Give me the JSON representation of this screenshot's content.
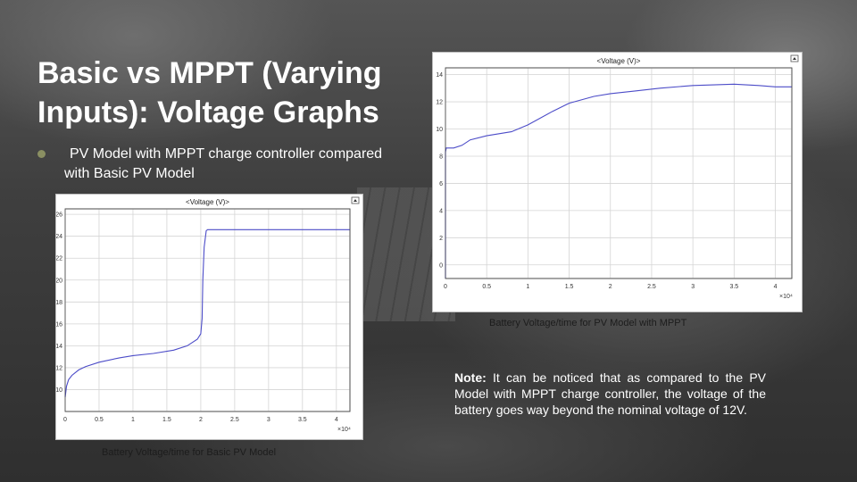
{
  "slide": {
    "title": "Basic vs MPPT (Varying Inputs): Voltage Graphs",
    "bullet": "PV Model with MPPT charge controller compared with Basic PV Model",
    "note_label": "Note:",
    "note_text": " It can be noticed that as compared to the PV Model with MPPT charge controller, the voltage of the battery goes way beyond the nominal voltage of 12V.",
    "caption_basic": "Battery Voltage/time for Basic PV Model",
    "caption_mppt": "Battery Voltage/time for PV Model with MPPT",
    "colors": {
      "accent_bullet": "#8a8f62",
      "line": "#4c4cc8",
      "text": "#ffffff"
    }
  },
  "chart_data": [
    {
      "type": "line",
      "title": "<Voltage (V)>",
      "x_exponent": "×10⁴",
      "xlim": [
        0,
        4.2
      ],
      "ylim": [
        8,
        26.5
      ],
      "x_ticks": [
        0,
        0.5,
        1,
        1.5,
        2,
        2.5,
        3,
        3.5,
        4
      ],
      "x_tick_labels": [
        "0",
        "0.5",
        "1",
        "1.5",
        "2",
        "2.5",
        "3",
        "3.5",
        "4"
      ],
      "y_ticks": [
        10,
        12,
        14,
        16,
        18,
        20,
        22,
        24,
        26
      ],
      "y_tick_labels": [
        "10",
        "12",
        "14",
        "16",
        "18",
        "20",
        "22",
        "24",
        "26"
      ],
      "grid": true,
      "series": [
        {
          "x": [
            0,
            0.02,
            0.05,
            0.1,
            0.2,
            0.3,
            0.5,
            0.8,
            1.0,
            1.3,
            1.6,
            1.8,
            1.95,
            2.0,
            2.02,
            2.03,
            2.05,
            2.08,
            2.1,
            2.2,
            3.0,
            4.0,
            4.2
          ],
          "y": [
            9.3,
            10.3,
            10.9,
            11.3,
            11.8,
            12.1,
            12.5,
            12.9,
            13.1,
            13.3,
            13.6,
            14.0,
            14.6,
            15.1,
            16.5,
            20.0,
            23.0,
            24.5,
            24.6,
            24.6,
            24.6,
            24.6,
            24.6
          ]
        }
      ]
    },
    {
      "type": "line",
      "title": "<Voltage (V)>",
      "x_exponent": "×10⁴",
      "xlim": [
        0,
        4.2
      ],
      "ylim": [
        -1,
        14.5
      ],
      "x_ticks": [
        0,
        0.5,
        1,
        1.5,
        2,
        2.5,
        3,
        3.5,
        4
      ],
      "x_tick_labels": [
        "0",
        "0.5",
        "1",
        "1.5",
        "2",
        "2.5",
        "3",
        "3.5",
        "4"
      ],
      "y_ticks": [
        0,
        2,
        4,
        6,
        8,
        10,
        12,
        14
      ],
      "y_tick_labels": [
        "0",
        "2",
        "4",
        "6",
        "8",
        "10",
        "12",
        "14"
      ],
      "grid": true,
      "series": [
        {
          "x": [
            0,
            0.0,
            0.01,
            0.1,
            0.2,
            0.3,
            0.5,
            0.8,
            1.0,
            1.3,
            1.5,
            1.8,
            2.0,
            2.3,
            2.6,
            3.0,
            3.5,
            3.8,
            4.0,
            4.2
          ],
          "y": [
            -1,
            8.3,
            8.6,
            8.6,
            8.8,
            9.2,
            9.5,
            9.8,
            10.3,
            11.3,
            11.9,
            12.4,
            12.6,
            12.8,
            13.0,
            13.2,
            13.3,
            13.2,
            13.1,
            13.1
          ]
        }
      ]
    }
  ]
}
